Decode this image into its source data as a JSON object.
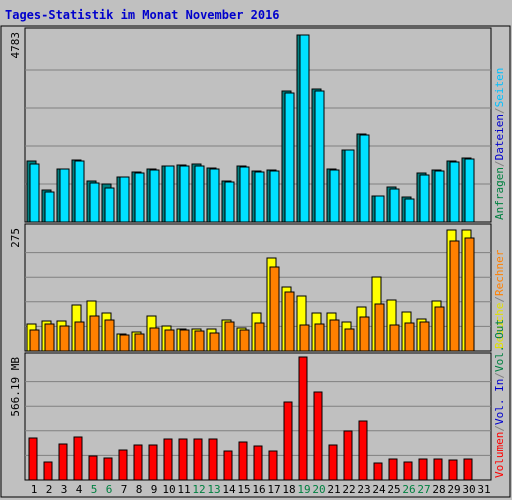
{
  "chart_data": {
    "type": "bar",
    "title": "Tages-Statistik im Monat November 2016",
    "categories": [
      "1",
      "2",
      "3",
      "4",
      "5",
      "6",
      "7",
      "8",
      "9",
      "10",
      "11",
      "12",
      "13",
      "14",
      "15",
      "16",
      "17",
      "18",
      "19",
      "20",
      "21",
      "22",
      "23",
      "24",
      "25",
      "26",
      "27",
      "28",
      "29",
      "30",
      "31"
    ],
    "weekend_days": [
      5,
      6,
      12,
      13,
      19,
      20,
      26,
      27
    ],
    "panels": [
      {
        "id": "top",
        "ymax_label": "4783",
        "ymax": 4783,
        "right_labels": [
          {
            "text": "Anfragen",
            "color": "#008040"
          },
          {
            "text": "/",
            "color": "#808080"
          },
          {
            "text": "Dateien",
            "color": "#0000cc"
          },
          {
            "text": "/",
            "color": "#808080"
          },
          {
            "text": "Seiten",
            "color": "#00c0ff"
          }
        ],
        "series": [
          {
            "name": "Anfragen",
            "color": "#008080",
            "values": [
              1540,
              800,
              1340,
              1550,
              1040,
              950,
              1140,
              1260,
              1340,
              1420,
              1430,
              1460,
              1360,
              1040,
              1420,
              1290,
              1320,
              3300,
              4720,
              3350,
              1330,
              1810,
              2210,
              660,
              870,
              620,
              1240,
              1310,
              1540,
              1610,
              0
            ]
          },
          {
            "name": "Seiten",
            "color": "#00e0ff",
            "values": [
              1470,
              750,
              1330,
              1540,
              990,
              850,
              1130,
              1240,
              1300,
              1400,
              1420,
              1420,
              1340,
              1000,
              1390,
              1260,
              1290,
              3250,
              4700,
              3300,
              1300,
              1800,
              2190,
              650,
              820,
              590,
              1190,
              1290,
              1510,
              1580,
              0
            ]
          }
        ]
      },
      {
        "id": "middle",
        "ymax_label": "275",
        "ymax": 275,
        "right_labels": [
          {
            "text": "Besuche",
            "color": "#e0e000"
          },
          {
            "text": "/",
            "color": "#808080"
          },
          {
            "text": "Rechner",
            "color": "#ff8000"
          }
        ],
        "series": [
          {
            "name": "Besuche",
            "color": "#ffff00",
            "values": [
              60,
              68,
              66,
              102,
              112,
              85,
              38,
              42,
              78,
              56,
              50,
              50,
              50,
              70,
              52,
              84,
              208,
              144,
              122,
              84,
              86,
              64,
              98,
              166,
              114,
              88,
              72,
              112,
              270,
              270,
              0
            ]
          },
          {
            "name": "Rechner",
            "color": "#ff8000",
            "values": [
              48,
              60,
              56,
              64,
              78,
              70,
              36,
              38,
              52,
              46,
              46,
              44,
              40,
              64,
              48,
              62,
              188,
              132,
              58,
              60,
              70,
              50,
              76,
              106,
              58,
              62,
              64,
              98,
              246,
              252,
              0
            ]
          }
        ]
      },
      {
        "id": "bottom",
        "ymax_label": "566.19 MB",
        "ymax": 566.19,
        "right_labels": [
          {
            "text": "Volumen",
            "color": "#ff0000"
          },
          {
            "text": "/",
            "color": "#808080"
          },
          {
            "text": "Vol. In",
            "color": "#0000cc"
          },
          {
            "text": "/",
            "color": "#808080"
          },
          {
            "text": "Vol. Out",
            "color": "#008040"
          }
        ],
        "series": [
          {
            "name": "Volumen",
            "color": "#ff0000",
            "values": [
              194,
              84,
              166,
              196,
              110,
              100,
              136,
              159,
              159,
              188,
              188,
              188,
              188,
              132,
              175,
              156,
              135,
              357,
              566,
              407,
              160,
              227,
              270,
              78,
              98,
              83,
              96,
              96,
              91,
              96,
              0
            ]
          }
        ]
      }
    ]
  }
}
